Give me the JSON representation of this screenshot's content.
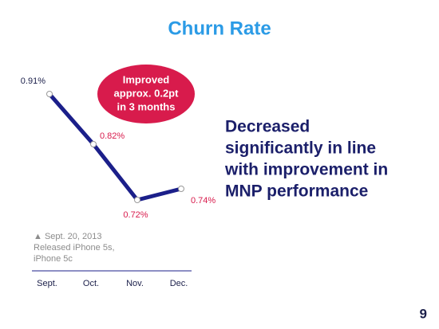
{
  "chart_data": {
    "type": "line",
    "title": "Churn Rate",
    "categories": [
      "Sept.",
      "Oct.",
      "Nov.",
      "Dec."
    ],
    "values": [
      0.91,
      0.82,
      0.72,
      0.74
    ],
    "value_labels": [
      "0.91%",
      "0.82%",
      "0.72%",
      "0.74%"
    ],
    "color": "#1b1f8a"
  },
  "callout": {
    "lines": [
      "Improved",
      "approx. 0.2pt",
      "in 3 months"
    ]
  },
  "note": {
    "lines": [
      "▲ Sept. 20, 2013",
      "Released iPhone 5s,",
      "iPhone 5c"
    ]
  },
  "message": {
    "lines": [
      "Decreased",
      "significantly in line",
      "with improvement in",
      "MNP performance"
    ]
  },
  "page_number": "9"
}
